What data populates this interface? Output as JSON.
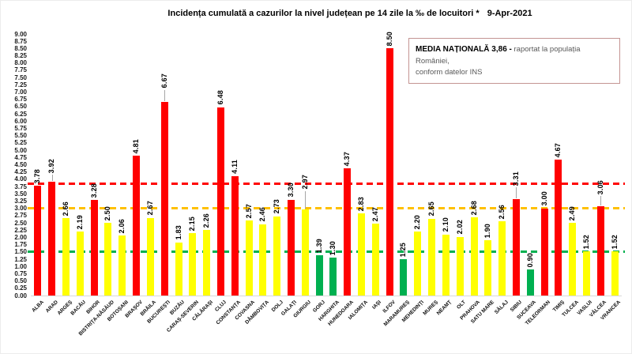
{
  "title": "Incidența cumulată a cazurilor la nivel județean pe 14 zile la ‰ de locuitori *",
  "title_date": "9-Apr-2021",
  "legend_box": {
    "bold_text": "MEDIA NAȚIONALĂ  3,86 -",
    "line1": "raportat la populația României,",
    "line2": "conform datelor INS"
  },
  "colors": {
    "red_zone": "#FF0000",
    "yellow_zone": "#FFFF00",
    "green_zone": "#00B050",
    "avg_line": "#FF0000",
    "warn_line": "#FFC000",
    "safe_line": "#00B050",
    "legend_border": "#C49492",
    "axis_line": "#D9D9D9",
    "leader_line": "#A6A6A6"
  },
  "chart_data": {
    "type": "bar",
    "title": "Incidența cumulată a cazurilor la nivel județean pe 14 zile la ‰ de locuitori * 9-Apr-2021",
    "xlabel": "",
    "ylabel": "",
    "ylim": [
      0,
      9
    ],
    "ytick_step": 0.25,
    "grid": false,
    "legend_position": "top-right",
    "yticks": [
      "9.00",
      "8.75",
      "8.50",
      "8.25",
      "8.00",
      "7.75",
      "7.50",
      "7.25",
      "7.00",
      "6.75",
      "6.50",
      "6.25",
      "6.00",
      "5.75",
      "5.50",
      "5.25",
      "5.00",
      "4.75",
      "4.50",
      "4.25",
      "4.00",
      "3.75",
      "3.50",
      "3.25",
      "3.00",
      "2.75",
      "2.50",
      "2.25",
      "2.00",
      "1.75",
      "1.50",
      "1.25",
      "1.00",
      "0.75",
      "0.50",
      "0.25",
      "0.00"
    ],
    "categories": [
      "ALBA",
      "ARAD",
      "ARGEȘ",
      "BACĂU",
      "BIHOR",
      "BISTRIȚA-NĂSĂUD",
      "BOTOȘANI",
      "BRAȘOV",
      "BRĂILA",
      "BUCUREȘTI",
      "BUZĂU",
      "CARAȘ-SEVERIN",
      "CĂLĂRAȘI",
      "CLUJ",
      "CONSTANȚA",
      "COVASNA",
      "DÂMBOVIȚA",
      "DOLJ",
      "GALAȚI",
      "GIURGIU",
      "GORJ",
      "HARGHITA",
      "HUNEDOARA",
      "IALOMIȚA",
      "IAȘI",
      "ILFOV",
      "MARAMUREȘ",
      "MEHEDINȚI",
      "MUREȘ",
      "NEAMȚ",
      "OLT",
      "PRAHOVA",
      "SATU MARE",
      "SĂLAJ",
      "SIBIU",
      "SUCEAVA",
      "TELEORMAN",
      "TIMIȘ",
      "TULCEA",
      "VASLUI",
      "VÂLCEA",
      "VRANCEA"
    ],
    "values": [
      3.78,
      3.92,
      2.66,
      2.19,
      3.28,
      2.5,
      2.06,
      4.81,
      2.67,
      6.67,
      1.83,
      2.15,
      2.26,
      6.48,
      4.11,
      2.57,
      2.46,
      2.73,
      3.3,
      2.97,
      1.39,
      1.3,
      4.37,
      2.83,
      2.47,
      8.5,
      1.25,
      2.2,
      2.65,
      2.1,
      2.02,
      2.68,
      1.9,
      2.56,
      3.31,
      0.9,
      3.0,
      4.67,
      2.49,
      1.52,
      3.06,
      1.52
    ],
    "value_labels": [
      "3.78",
      "3.92",
      "2.66",
      "2.19",
      "3.28",
      "2.50",
      "2.06",
      "4.81",
      "2.67",
      "6.67",
      "1.83",
      "2.15",
      "2.26",
      "6.48",
      "4.11",
      "2.57",
      "2.46",
      "2.73",
      "3.30",
      "2.97",
      "1.39",
      "1.30",
      "4.37",
      "2.83",
      "2.47",
      "8.50",
      "1.25",
      "2.20",
      "2.65",
      "2.10",
      "2.02",
      "2.68",
      "1.90",
      "2.56",
      "3.31",
      "0.90",
      "3.00",
      "4.67",
      "2.49",
      "1.52",
      "3.06",
      "1.52"
    ],
    "zones": [
      "red",
      "red",
      "yellow",
      "yellow",
      "red",
      "yellow",
      "yellow",
      "red",
      "yellow",
      "red",
      "yellow",
      "yellow",
      "yellow",
      "red",
      "red",
      "yellow",
      "yellow",
      "yellow",
      "red",
      "yellow",
      "green",
      "green",
      "red",
      "yellow",
      "yellow",
      "red",
      "green",
      "yellow",
      "yellow",
      "yellow",
      "yellow",
      "yellow",
      "yellow",
      "yellow",
      "red",
      "green",
      "red",
      "red",
      "yellow",
      "yellow",
      "red",
      "yellow"
    ],
    "reference_lines": [
      {
        "name": "media-nationala-3.86",
        "value": 3.86,
        "color": "#FF0000"
      },
      {
        "name": "prag-rosu-3.00",
        "value": 3.0,
        "color": "#FFC000"
      },
      {
        "name": "prag-verde-1.50",
        "value": 1.5,
        "color": "#00B050"
      }
    ],
    "leader_lengths": {
      "1": 8,
      "9": 14,
      "19": 22,
      "34": 14,
      "40": 12
    }
  }
}
